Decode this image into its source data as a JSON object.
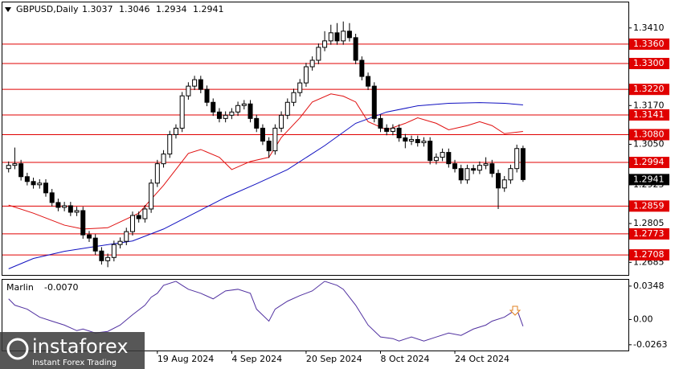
{
  "chart_data": {
    "type": "candlestick",
    "symbol": "GBPUSD,Daily",
    "candles": [
      [
        1.2975,
        1.2997,
        1.2963,
        1.2985
      ],
      [
        1.2985,
        1.304,
        1.2973,
        1.299
      ],
      [
        1.299,
        1.3002,
        1.2938,
        1.295
      ],
      [
        1.295,
        1.2962,
        1.2923,
        1.2935
      ],
      [
        1.2935,
        1.2947,
        1.2913,
        1.2925
      ],
      [
        1.2925,
        1.2942,
        1.2913,
        1.293
      ],
      [
        1.293,
        1.2942,
        1.2888,
        1.29
      ],
      [
        1.29,
        1.2912,
        1.2858,
        1.287
      ],
      [
        1.287,
        1.2882,
        1.2843,
        1.2855
      ],
      [
        1.2855,
        1.2872,
        1.2843,
        1.286
      ],
      [
        1.286,
        1.2872,
        1.2828,
        1.284
      ],
      [
        1.284,
        1.2857,
        1.2828,
        1.2845
      ],
      [
        1.2845,
        1.2857,
        1.2758,
        1.277
      ],
      [
        1.277,
        1.2782,
        1.2748,
        1.276
      ],
      [
        1.276,
        1.2772,
        1.2708,
        1.272
      ],
      [
        1.272,
        1.2732,
        1.2678,
        1.269
      ],
      [
        1.269,
        1.2712,
        1.267,
        1.27
      ],
      [
        1.27,
        1.2752,
        1.2688,
        1.274
      ],
      [
        1.274,
        1.2762,
        1.2728,
        1.275
      ],
      [
        1.275,
        1.2792,
        1.2738,
        1.278
      ],
      [
        1.278,
        1.2842,
        1.2768,
        1.283
      ],
      [
        1.283,
        1.2842,
        1.2808,
        1.282
      ],
      [
        1.282,
        1.2862,
        1.2808,
        1.285
      ],
      [
        1.285,
        1.2942,
        1.2838,
        1.293
      ],
      [
        1.293,
        1.3002,
        1.2918,
        1.299
      ],
      [
        1.299,
        1.3032,
        1.2978,
        1.302
      ],
      [
        1.302,
        1.3092,
        1.3008,
        1.308
      ],
      [
        1.308,
        1.3112,
        1.3068,
        1.31
      ],
      [
        1.31,
        1.3212,
        1.3088,
        1.32
      ],
      [
        1.32,
        1.3242,
        1.3188,
        1.323
      ],
      [
        1.323,
        1.3262,
        1.3218,
        1.325
      ],
      [
        1.325,
        1.3262,
        1.3208,
        1.322
      ],
      [
        1.322,
        1.3232,
        1.3168,
        1.318
      ],
      [
        1.318,
        1.3192,
        1.3138,
        1.315
      ],
      [
        1.315,
        1.3162,
        1.3118,
        1.313
      ],
      [
        1.313,
        1.3152,
        1.3118,
        1.314
      ],
      [
        1.314,
        1.3162,
        1.3128,
        1.315
      ],
      [
        1.315,
        1.3182,
        1.3138,
        1.317
      ],
      [
        1.317,
        1.3187,
        1.3158,
        1.3175
      ],
      [
        1.3175,
        1.3187,
        1.3118,
        1.313
      ],
      [
        1.313,
        1.3142,
        1.3088,
        1.31
      ],
      [
        1.31,
        1.3112,
        1.3048,
        1.306
      ],
      [
        1.306,
        1.3072,
        1.3008,
        1.303
      ],
      [
        1.303,
        1.3112,
        1.3018,
        1.31
      ],
      [
        1.31,
        1.3152,
        1.3088,
        1.314
      ],
      [
        1.314,
        1.3192,
        1.3128,
        1.318
      ],
      [
        1.318,
        1.3222,
        1.3168,
        1.321
      ],
      [
        1.321,
        1.3252,
        1.3198,
        1.324
      ],
      [
        1.324,
        1.3302,
        1.3228,
        1.329
      ],
      [
        1.329,
        1.3322,
        1.3278,
        1.331
      ],
      [
        1.331,
        1.3362,
        1.3298,
        1.335
      ],
      [
        1.335,
        1.34,
        1.3338,
        1.337
      ],
      [
        1.337,
        1.342,
        1.3358,
        1.3395
      ],
      [
        1.3395,
        1.3425,
        1.3358,
        1.337
      ],
      [
        1.337,
        1.343,
        1.3358,
        1.34
      ],
      [
        1.34,
        1.3425,
        1.3368,
        1.338
      ],
      [
        1.338,
        1.3392,
        1.3298,
        1.331
      ],
      [
        1.331,
        1.3322,
        1.3248,
        1.326
      ],
      [
        1.326,
        1.3272,
        1.3218,
        1.323
      ],
      [
        1.323,
        1.3242,
        1.3118,
        1.313
      ],
      [
        1.313,
        1.3142,
        1.3088,
        1.31
      ],
      [
        1.31,
        1.3112,
        1.3078,
        1.309
      ],
      [
        1.309,
        1.3112,
        1.3078,
        1.31
      ],
      [
        1.31,
        1.3112,
        1.3058,
        1.307
      ],
      [
        1.307,
        1.3082,
        1.3038,
        1.306
      ],
      [
        1.306,
        1.3077,
        1.3048,
        1.3065
      ],
      [
        1.3065,
        1.3077,
        1.3043,
        1.3055
      ],
      [
        1.3055,
        1.3072,
        1.3043,
        1.306
      ],
      [
        1.306,
        1.3072,
        1.2988,
        1.3
      ],
      [
        1.3,
        1.3022,
        1.2988,
        1.301
      ],
      [
        1.301,
        1.3037,
        1.2998,
        1.3025
      ],
      [
        1.3025,
        1.3037,
        1.2978,
        1.299
      ],
      [
        1.299,
        1.3002,
        1.2963,
        1.2975
      ],
      [
        1.2975,
        1.2987,
        1.2928,
        1.294
      ],
      [
        1.294,
        1.2987,
        1.2928,
        1.2975
      ],
      [
        1.2975,
        1.2987,
        1.2958,
        1.297
      ],
      [
        1.297,
        1.2997,
        1.2958,
        1.2985
      ],
      [
        1.2985,
        1.301,
        1.2973,
        1.299
      ],
      [
        1.299,
        1.3002,
        1.2948,
        1.296
      ],
      [
        1.296,
        1.2972,
        1.285,
        1.2915
      ],
      [
        1.2915,
        1.2952,
        1.2903,
        1.294
      ],
      [
        1.294,
        1.2987,
        1.2928,
        1.2975
      ],
      [
        1.2975,
        1.3049,
        1.2963,
        1.3037
      ],
      [
        1.3037,
        1.3046,
        1.2934,
        1.2941
      ]
    ],
    "xlim": [
      -1,
      100
    ],
    "ylim": [
      1.2646,
      1.3489
    ],
    "yticks": [
      {
        "value": 1.341,
        "label": "1.3410"
      },
      {
        "value": 1.317,
        "label": "1.3170"
      },
      {
        "value": 1.305,
        "label": "1.3050"
      },
      1.2925,
      1.2805,
      1.2685
    ],
    "xticks": [
      {
        "value": 24,
        "label": "19 Aug 2024"
      },
      {
        "value": 36,
        "label": "4 Sep 2024"
      },
      {
        "value": 48,
        "label": "20 Sep 2024"
      },
      {
        "value": 60,
        "label": "8 Oct 2024"
      },
      {
        "value": 72,
        "label": "24 Oct 2024"
      }
    ],
    "levels": [
      {
        "value": 1.336,
        "label": "1.3360"
      },
      {
        "value": 1.33,
        "label": "1.3300"
      },
      {
        "value": 1.322,
        "label": "1.3220"
      },
      1.3141,
      {
        "value": 1.308,
        "label": "1.3080"
      },
      1.2994,
      1.2859,
      1.2773,
      1.2708
    ],
    "level_color": "#e00000",
    "overlays": [
      {
        "color": "#e01010",
        "x": [
          0,
          4,
          9,
          12,
          16,
          21,
          25,
          29,
          31,
          34,
          36,
          39,
          42,
          44,
          47,
          49,
          52,
          54,
          56,
          58,
          61,
          64,
          66,
          69,
          71,
          74,
          76,
          78,
          80,
          83
        ],
        "values": [
          1.2862,
          1.2837,
          1.28,
          1.2788,
          1.2792,
          1.2837,
          1.2923,
          1.3022,
          1.3034,
          1.301,
          1.2972,
          1.2997,
          1.301,
          1.3071,
          1.3132,
          1.3181,
          1.3206,
          1.3199,
          1.3181,
          1.312,
          1.3095,
          1.3115,
          1.3132,
          1.3115,
          1.3095,
          1.3108,
          1.312,
          1.3108,
          1.3083,
          1.309
        ]
      },
      {
        "color": "#1010c0",
        "x": [
          0,
          4,
          9,
          14,
          20,
          25,
          30,
          35,
          40,
          45,
          51,
          56,
          61,
          66,
          71,
          76,
          80,
          83
        ],
        "values": [
          1.2665,
          1.2697,
          1.2719,
          1.2734,
          1.2751,
          1.2788,
          1.2837,
          1.2886,
          1.2928,
          1.2972,
          1.3046,
          1.3115,
          1.315,
          1.3169,
          1.3177,
          1.3179,
          1.3177,
          1.3172
        ]
      }
    ],
    "indicator": {
      "title": "Marlin",
      "value": -0.007,
      "value_label": "-0.0070",
      "color": "#5030a0",
      "ylim": [
        -0.0323,
        0.0414
      ],
      "yticks": [
        0.0348,
        {
          "value": 0,
          "label": "0.00"
        },
        -0.0263
      ],
      "x": [
        0,
        1,
        3,
        5,
        7,
        9,
        11,
        12,
        14,
        16,
        18,
        20,
        22,
        23,
        24,
        25,
        27,
        28,
        29,
        31,
        33,
        35,
        37,
        39,
        40,
        42,
        43,
        45,
        47,
        49,
        51,
        53,
        54,
        56,
        58,
        60,
        62,
        63,
        65,
        67,
        69,
        71,
        73,
        75,
        77,
        78,
        80,
        82,
        83
      ],
      "values": [
        0.0215,
        0.0149,
        0.0108,
        0.0025,
        -0.0017,
        -0.0058,
        -0.0116,
        -0.0099,
        -0.0141,
        -0.0124,
        -0.0058,
        0.005,
        0.0149,
        0.0232,
        0.0273,
        0.0356,
        0.0398,
        0.0356,
        0.0315,
        0.0273,
        0.0215,
        0.0298,
        0.0315,
        0.0273,
        0.0108,
        -0.0017,
        0.0108,
        0.0191,
        0.0249,
        0.0298,
        0.0398,
        0.0356,
        0.0315,
        0.0149,
        -0.0058,
        -0.0182,
        -0.0199,
        -0.0224,
        -0.0182,
        -0.0224,
        -0.0182,
        -0.0141,
        -0.0166,
        -0.0099,
        -0.0058,
        -0.0017,
        0.0025,
        0.0108,
        -0.007
      ]
    }
  },
  "logo": {
    "brand": "instaforex",
    "tagline": "Instant Forex Trading"
  }
}
